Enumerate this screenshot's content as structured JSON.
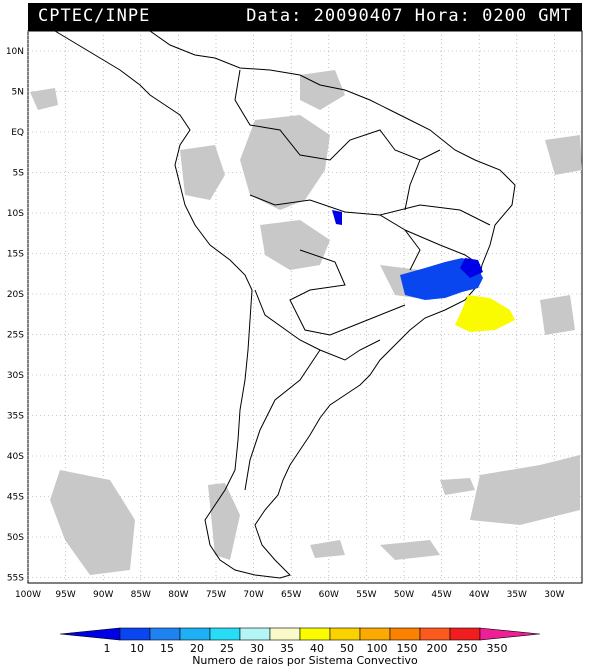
{
  "header": {
    "source": "CPTEC/INPE",
    "datetime": "Data: 20090407 Hora: 0200 GMT"
  },
  "map": {
    "lat_labels": [
      "10N",
      "5N",
      "EQ",
      "5S",
      "10S",
      "15S",
      "20S",
      "25S",
      "30S",
      "35S",
      "40S",
      "45S",
      "50S",
      "55S"
    ],
    "lon_labels": [
      "100W",
      "95W",
      "90W",
      "85W",
      "80W",
      "75W",
      "70W",
      "65W",
      "60W",
      "55W",
      "50W",
      "45W",
      "40W",
      "35W",
      "30W"
    ]
  },
  "colorbar": {
    "title": "Numero de raios por Sistema Convectivo",
    "ticks": [
      "1",
      "10",
      "15",
      "20",
      "25",
      "30",
      "35",
      "40",
      "50",
      "100",
      "150",
      "200",
      "250",
      "350"
    ],
    "colors": [
      "#0000e6",
      "#0a46f0",
      "#1e82f0",
      "#1eaff5",
      "#28dcf5",
      "#b4f5f5",
      "#fafac8",
      "#fafa00",
      "#fad200",
      "#faaa00",
      "#fa8200",
      "#fa5a1e",
      "#f01e1e",
      "#f01e96"
    ]
  }
}
